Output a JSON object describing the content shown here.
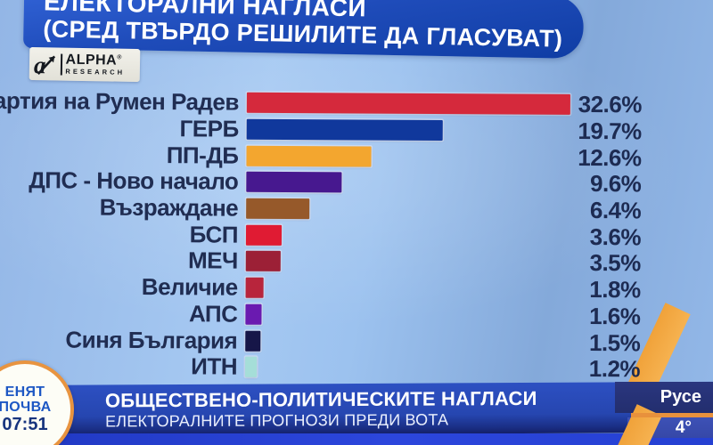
{
  "header": {
    "title_line1": "ЕЛЕКТОРАЛНИ НАГЛАСИ",
    "title_line2": "(СРЕД ТВЪРДО РЕШИЛИТЕ ДА ГЛАСУВАТ)"
  },
  "logo": {
    "brand": "ALPHA",
    "registered_mark": "®",
    "sub": "RESEARCH"
  },
  "chart_data": {
    "type": "bar",
    "orientation": "horizontal",
    "title": "ЕЛЕКТОРАЛНИ НАГЛАСИ (СРЕД ТВЪРДО РЕШИЛИТЕ ДА ГЛАСУВАТ)",
    "source": "ALPHA RESEARCH",
    "xlim": [
      0,
      35
    ],
    "grid": false,
    "categories": [
      "Партия на Румен Радев",
      "ГЕРБ",
      "ПП-ДБ",
      "ДПС - Ново начало",
      "Възраждане",
      "БСП",
      "МЕЧ",
      "Величие",
      "АПС",
      "Синя България",
      "ИТН"
    ],
    "values": [
      32.6,
      19.7,
      12.6,
      9.6,
      6.4,
      3.6,
      3.5,
      1.8,
      1.6,
      1.5,
      1.2
    ],
    "value_labels": [
      "32.6%",
      "19.7%",
      "12.6%",
      "9.6%",
      "6.4%",
      "3.6%",
      "3.5%",
      "1.8%",
      "1.6%",
      "1.5%",
      "1.2%"
    ],
    "bar_colors": [
      "#d5293c",
      "#10389c",
      "#f3a62f",
      "#47188f",
      "#96592a",
      "#e01b33",
      "#9c2036",
      "#b8253c",
      "#6a1ab0",
      "#161648",
      "#a5ded8"
    ]
  },
  "lower_third": {
    "line1": "ОБЩЕСТВЕНО-ПОЛИТИЧЕСКИТЕ НАГЛАСИ",
    "line2": "ЕЛЕКТОРАЛНИТЕ ПРОГНОЗИ ПРЕДИ ВОТА"
  },
  "show_badge": {
    "line1": "ЕНЯТ",
    "line2": "ПОЧВА",
    "time": "07:51"
  },
  "weather": {
    "city": "Русе",
    "temp": "4°"
  },
  "colors": {
    "accent_orange": "#e8913c",
    "banner_blue": "#1f4cba",
    "text_navy": "#1d2b52",
    "background_blue": "#9cc2ef"
  }
}
